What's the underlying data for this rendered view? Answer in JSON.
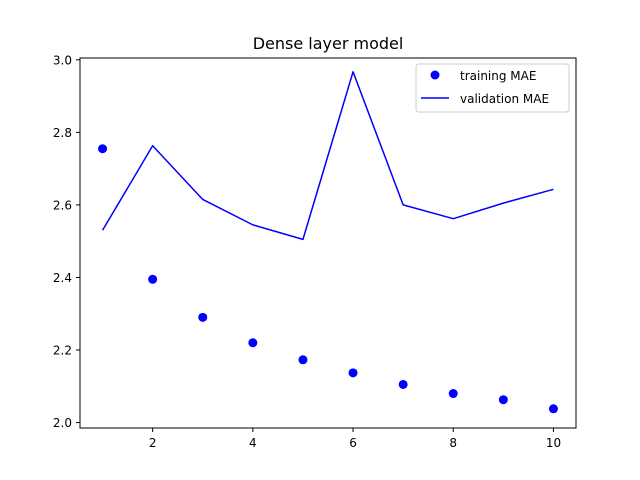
{
  "chart_data": {
    "type": "line",
    "title": "Dense layer model",
    "xlabel": "",
    "ylabel": "",
    "x": [
      1,
      2,
      3,
      4,
      5,
      6,
      7,
      8,
      9,
      10
    ],
    "xlim": [
      0.55,
      10.45
    ],
    "ylim": [
      1.985,
      3.005
    ],
    "x_ticks": [
      2,
      4,
      6,
      8,
      10
    ],
    "y_ticks": [
      2.0,
      2.2,
      2.4,
      2.6,
      2.8,
      3.0
    ],
    "x_tick_labels": [
      "2",
      "4",
      "6",
      "8",
      "10"
    ],
    "y_tick_labels": [
      "2.0",
      "2.2",
      "2.4",
      "2.6",
      "2.8",
      "3.0"
    ],
    "grid": false,
    "legend_position": "top-right",
    "series": [
      {
        "name": "training MAE",
        "style": "points",
        "color": "#0000ff",
        "values": [
          2.755,
          2.395,
          2.29,
          2.22,
          2.173,
          2.137,
          2.105,
          2.08,
          2.063,
          2.038
        ]
      },
      {
        "name": "validation MAE",
        "style": "line",
        "color": "#0000ff",
        "values": [
          2.53,
          2.763,
          2.615,
          2.545,
          2.505,
          2.967,
          2.6,
          2.562,
          2.605,
          2.643
        ]
      }
    ]
  }
}
